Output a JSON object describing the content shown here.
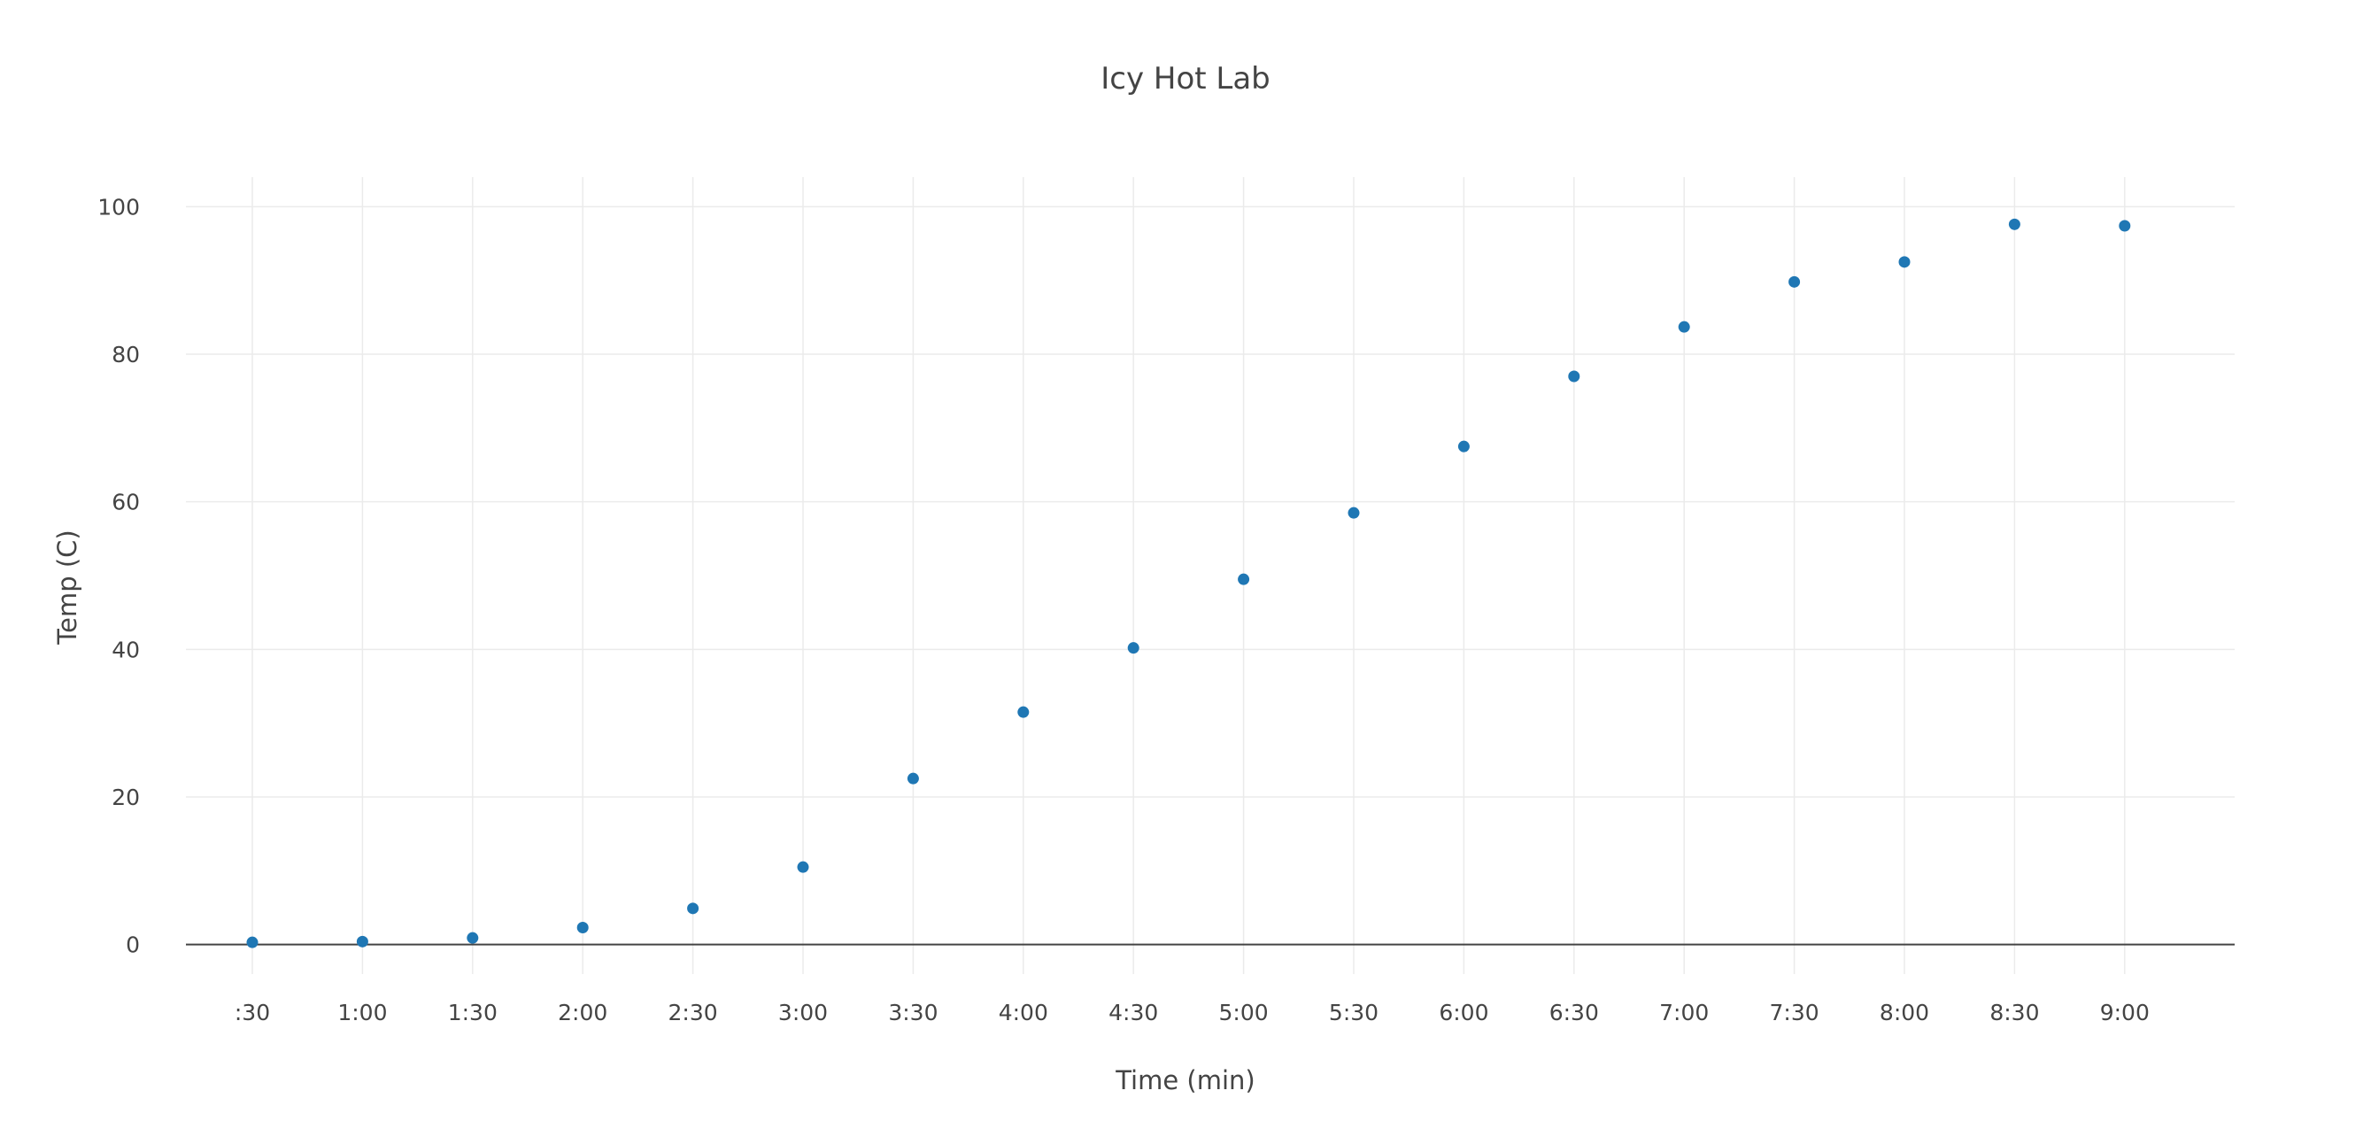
{
  "chart_data": {
    "type": "scatter",
    "title": "Icy Hot Lab",
    "xlabel": "Time (min)",
    "ylabel": "Temp (C)",
    "categories": [
      ":30",
      "1:00",
      "1:30",
      "2:00",
      "2:30",
      "3:00",
      "3:30",
      "4:00",
      "4:30",
      "5:00",
      "5:30",
      "6:00",
      "6:30",
      "7:00",
      "7:30",
      "8:00",
      "8:30",
      "9:00"
    ],
    "series": [
      {
        "values": [
          0.3,
          0.4,
          0.9,
          2.3,
          4.9,
          10.5,
          22.5,
          31.5,
          40.2,
          49.5,
          58.5,
          67.5,
          77.0,
          83.7,
          89.8,
          92.5,
          97.6,
          97.4
        ],
        "color": "#1f77b4"
      }
    ],
    "ylim": [
      -4,
      104
    ],
    "yticks": [
      0,
      20,
      40,
      60,
      80,
      100
    ],
    "grid": true,
    "legend": "none"
  }
}
